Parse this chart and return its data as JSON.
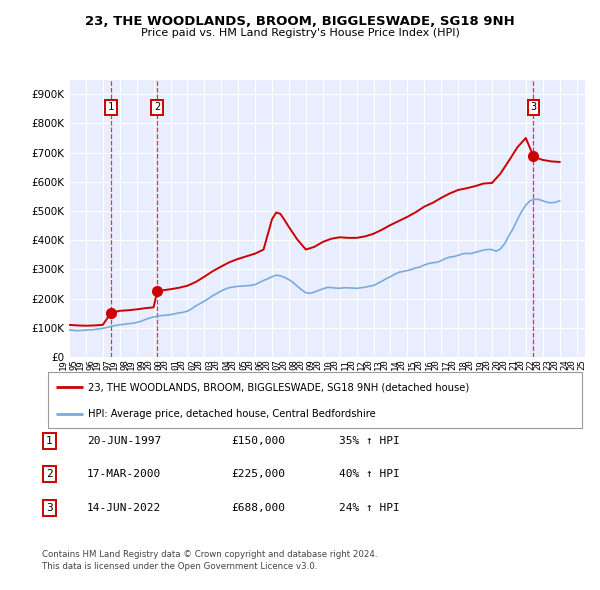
{
  "title": "23, THE WOODLANDS, BROOM, BIGGLESWADE, SG18 9NH",
  "subtitle": "Price paid vs. HM Land Registry's House Price Index (HPI)",
  "legend_label_red": "23, THE WOODLANDS, BROOM, BIGGLESWADE, SG18 9NH (detached house)",
  "legend_label_blue": "HPI: Average price, detached house, Central Bedfordshire",
  "footer_line1": "Contains HM Land Registry data © Crown copyright and database right 2024.",
  "footer_line2": "This data is licensed under the Open Government Licence v3.0.",
  "transactions": [
    {
      "num": 1,
      "date": "20-JUN-1997",
      "price": 150000,
      "hpi_pct": "35% ↑ HPI",
      "x": 1997.47
    },
    {
      "num": 2,
      "date": "17-MAR-2000",
      "price": 225000,
      "hpi_pct": "40% ↑ HPI",
      "x": 2000.21
    },
    {
      "num": 3,
      "date": "14-JUN-2022",
      "price": 688000,
      "hpi_pct": "24% ↑ HPI",
      "x": 2022.45
    }
  ],
  "xlim": [
    1995.0,
    2025.5
  ],
  "ylim": [
    0,
    950000
  ],
  "yticks": [
    0,
    100000,
    200000,
    300000,
    400000,
    500000,
    600000,
    700000,
    800000,
    900000
  ],
  "ytick_labels": [
    "£0",
    "£100K",
    "£200K",
    "£300K",
    "£400K",
    "£500K",
    "£600K",
    "£700K",
    "£800K",
    "£900K"
  ],
  "xticks": [
    1995,
    1996,
    1997,
    1998,
    1999,
    2000,
    2001,
    2002,
    2003,
    2004,
    2005,
    2006,
    2007,
    2008,
    2009,
    2010,
    2011,
    2012,
    2013,
    2014,
    2015,
    2016,
    2017,
    2018,
    2019,
    2020,
    2021,
    2022,
    2023,
    2024,
    2025
  ],
  "bg_color": "#e8eeff",
  "red_color": "#cc0000",
  "blue_color": "#7aabdc",
  "grid_color": "#ffffff",
  "hpi_data": {
    "x": [
      1995.0,
      1995.25,
      1995.5,
      1995.75,
      1996.0,
      1996.25,
      1996.5,
      1996.75,
      1997.0,
      1997.25,
      1997.5,
      1997.75,
      1998.0,
      1998.25,
      1998.5,
      1998.75,
      1999.0,
      1999.25,
      1999.5,
      1999.75,
      2000.0,
      2000.25,
      2000.5,
      2000.75,
      2001.0,
      2001.25,
      2001.5,
      2001.75,
      2002.0,
      2002.25,
      2002.5,
      2002.75,
      2003.0,
      2003.25,
      2003.5,
      2003.75,
      2004.0,
      2004.25,
      2004.5,
      2004.75,
      2005.0,
      2005.25,
      2005.5,
      2005.75,
      2006.0,
      2006.25,
      2006.5,
      2006.75,
      2007.0,
      2007.25,
      2007.5,
      2007.75,
      2008.0,
      2008.25,
      2008.5,
      2008.75,
      2009.0,
      2009.25,
      2009.5,
      2009.75,
      2010.0,
      2010.25,
      2010.5,
      2010.75,
      2011.0,
      2011.25,
      2011.5,
      2011.75,
      2012.0,
      2012.25,
      2012.5,
      2012.75,
      2013.0,
      2013.25,
      2013.5,
      2013.75,
      2014.0,
      2014.25,
      2014.5,
      2014.75,
      2015.0,
      2015.25,
      2015.5,
      2015.75,
      2016.0,
      2016.25,
      2016.5,
      2016.75,
      2017.0,
      2017.25,
      2017.5,
      2017.75,
      2018.0,
      2018.25,
      2018.5,
      2018.75,
      2019.0,
      2019.25,
      2019.5,
      2019.75,
      2020.0,
      2020.25,
      2020.5,
      2020.75,
      2021.0,
      2021.25,
      2021.5,
      2021.75,
      2022.0,
      2022.25,
      2022.5,
      2022.75,
      2023.0,
      2023.25,
      2023.5,
      2023.75,
      2024.0
    ],
    "y": [
      93000,
      91000,
      90000,
      91000,
      92000,
      93000,
      94000,
      96000,
      98000,
      101000,
      105000,
      108000,
      110000,
      112000,
      114000,
      115000,
      118000,
      122000,
      128000,
      133000,
      137000,
      140000,
      142000,
      143000,
      145000,
      148000,
      151000,
      153000,
      157000,
      165000,
      175000,
      183000,
      191000,
      200000,
      210000,
      218000,
      226000,
      233000,
      238000,
      240000,
      242000,
      243000,
      244000,
      245000,
      248000,
      255000,
      262000,
      268000,
      275000,
      280000,
      278000,
      272000,
      265000,
      255000,
      242000,
      230000,
      220000,
      218000,
      222000,
      228000,
      233000,
      238000,
      238000,
      236000,
      235000,
      237000,
      237000,
      236000,
      235000,
      237000,
      239000,
      242000,
      245000,
      252000,
      260000,
      268000,
      275000,
      283000,
      290000,
      293000,
      296000,
      300000,
      305000,
      308000,
      315000,
      320000,
      323000,
      324000,
      330000,
      337000,
      342000,
      344000,
      348000,
      353000,
      355000,
      354000,
      358000,
      362000,
      366000,
      368000,
      368000,
      362000,
      370000,
      388000,
      415000,
      440000,
      470000,
      498000,
      520000,
      535000,
      540000,
      540000,
      535000,
      530000,
      528000,
      530000,
      535000
    ]
  },
  "red_data": {
    "x": [
      1995.0,
      1995.5,
      1996.0,
      1996.5,
      1997.0,
      1997.47,
      1997.5,
      1997.75,
      1998.0,
      1998.5,
      1999.0,
      1999.5,
      2000.0,
      2000.21,
      2000.5,
      2001.0,
      2001.5,
      2002.0,
      2002.5,
      2003.0,
      2003.5,
      2004.0,
      2004.5,
      2005.0,
      2005.5,
      2006.0,
      2006.5,
      2007.0,
      2007.25,
      2007.5,
      2007.75,
      2008.0,
      2008.5,
      2009.0,
      2009.5,
      2010.0,
      2010.5,
      2011.0,
      2011.5,
      2012.0,
      2012.5,
      2013.0,
      2013.5,
      2014.0,
      2014.5,
      2015.0,
      2015.5,
      2016.0,
      2016.5,
      2017.0,
      2017.5,
      2018.0,
      2018.5,
      2019.0,
      2019.5,
      2020.0,
      2020.5,
      2021.0,
      2021.5,
      2022.0,
      2022.45,
      2022.5,
      2023.0,
      2023.5,
      2024.0
    ],
    "y": [
      110000,
      108000,
      107000,
      108000,
      110000,
      150000,
      152000,
      155000,
      158000,
      160000,
      163000,
      167000,
      170000,
      225000,
      228000,
      232000,
      237000,
      244000,
      257000,
      275000,
      294000,
      310000,
      325000,
      336000,
      345000,
      354000,
      368000,
      472000,
      495000,
      490000,
      468000,
      445000,
      402000,
      368000,
      377000,
      394000,
      405000,
      410000,
      408000,
      408000,
      413000,
      422000,
      436000,
      452000,
      466000,
      480000,
      496000,
      515000,
      528000,
      545000,
      560000,
      572000,
      578000,
      585000,
      594000,
      596000,
      628000,
      672000,
      718000,
      750000,
      688000,
      685000,
      675000,
      670000,
      668000
    ]
  }
}
